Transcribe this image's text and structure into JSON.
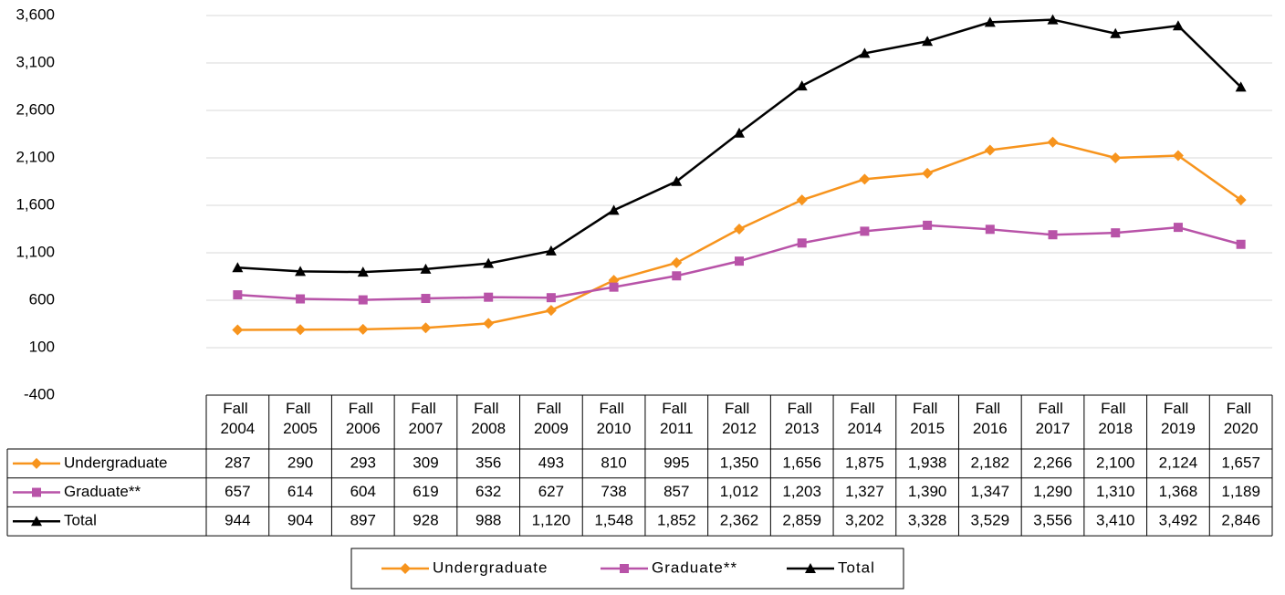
{
  "chart_data": {
    "type": "line",
    "categories": [
      "Fall 2004",
      "Fall 2005",
      "Fall 2006",
      "Fall 2007",
      "Fall 2008",
      "Fall 2009",
      "Fall 2010",
      "Fall 2011",
      "Fall 2012",
      "Fall 2013",
      "Fall 2014",
      "Fall 2015",
      "Fall 2016",
      "Fall 2017",
      "Fall 2018",
      "Fall 2019",
      "Fall 2020"
    ],
    "series": [
      {
        "name": "Undergraduate",
        "color": "#f7941d",
        "marker": "diamond",
        "values": [
          287,
          290,
          293,
          309,
          356,
          493,
          810,
          995,
          1350,
          1656,
          1875,
          1938,
          2182,
          2266,
          2100,
          2124,
          1657
        ],
        "value_labels": [
          "287",
          "290",
          "293",
          "309",
          "356",
          "493",
          "810",
          "995",
          "1,350",
          "1,656",
          "1,875",
          "1,938",
          "2,182",
          "2,266",
          "2,100",
          "2,124",
          "1,657"
        ]
      },
      {
        "name": "Graduate**",
        "color": "#b853a8",
        "marker": "square",
        "values": [
          657,
          614,
          604,
          619,
          632,
          627,
          738,
          857,
          1012,
          1203,
          1327,
          1390,
          1347,
          1290,
          1310,
          1368,
          1189
        ],
        "value_labels": [
          "657",
          "614",
          "604",
          "619",
          "632",
          "627",
          "738",
          "857",
          "1,012",
          "1,203",
          "1,327",
          "1,390",
          "1,347",
          "1,290",
          "1,310",
          "1,368",
          "1,189"
        ]
      },
      {
        "name": "Total",
        "color": "#000000",
        "marker": "triangle",
        "values": [
          944,
          904,
          897,
          928,
          988,
          1120,
          1548,
          1852,
          2362,
          2859,
          3202,
          3328,
          3529,
          3556,
          3410,
          3492,
          2846
        ],
        "value_labels": [
          "944",
          "904",
          "897",
          "928",
          "988",
          "1,120",
          "1,548",
          "1,852",
          "2,362",
          "2,859",
          "3,202",
          "3,328",
          "3,529",
          "3,556",
          "3,410",
          "3,492",
          "2,846"
        ]
      }
    ],
    "ylim": [
      -400,
      3600
    ],
    "yticks": [
      -400,
      100,
      600,
      {
        "value": 1100,
        "label": "1,100"
      },
      {
        "value": 1600,
        "label": "1,600"
      },
      {
        "value": 2100,
        "label": "2,100"
      },
      {
        "value": 2600,
        "label": "2,600"
      },
      {
        "value": 3100,
        "label": "3,100"
      },
      {
        "value": 3600,
        "label": "3,600"
      }
    ],
    "grid": true,
    "legend": "bottom"
  }
}
